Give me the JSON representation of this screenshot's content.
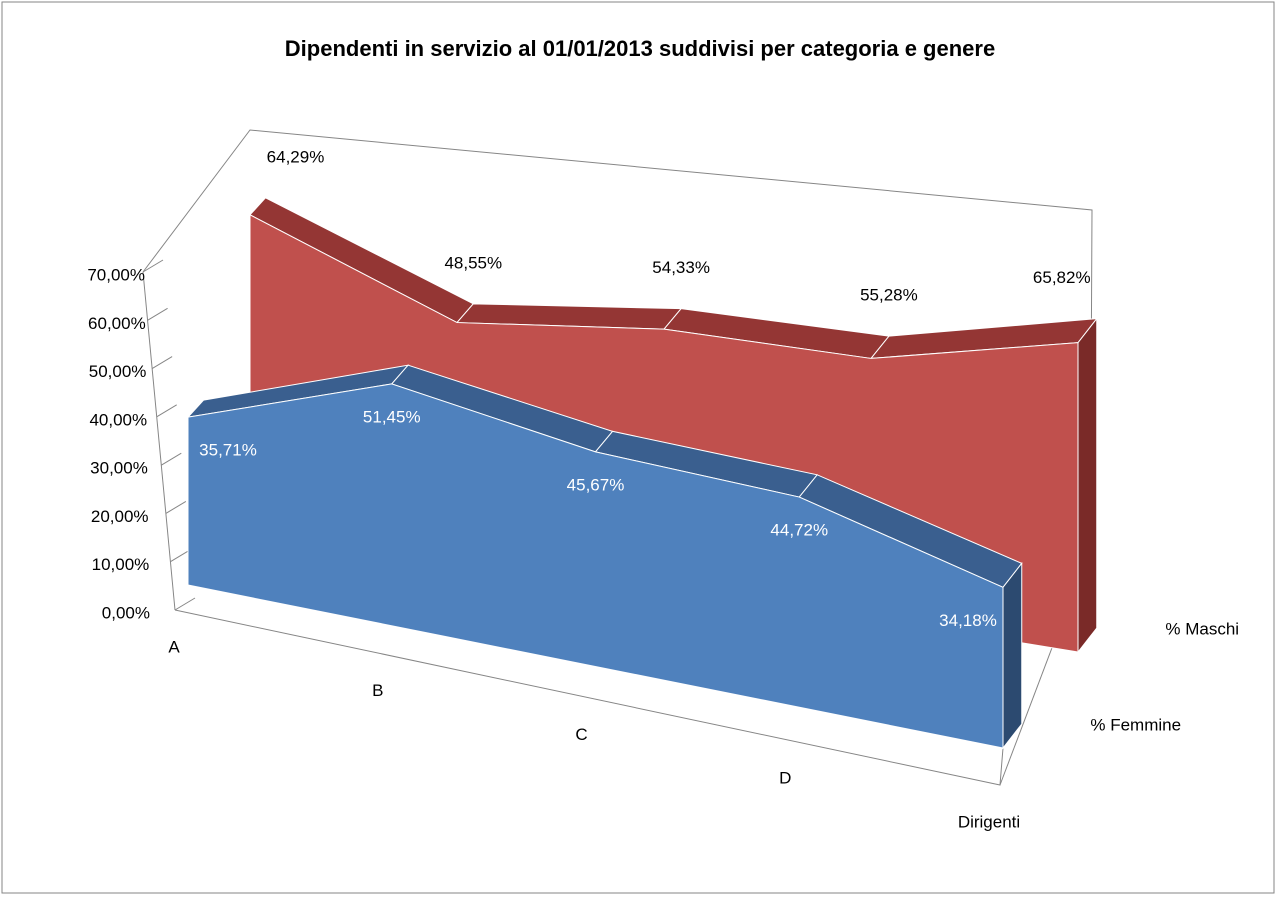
{
  "chart_data": {
    "type": "area3d",
    "title": "Dipendenti in servizio al 01/01/2013 suddivisi per categoria e genere",
    "categories": [
      "A",
      "B",
      "C",
      "D",
      "Dirigenti"
    ],
    "series": [
      {
        "name": "% Femmine",
        "color": "#4f81bd",
        "values": [
          35.71,
          51.45,
          45.67,
          44.72,
          34.18
        ],
        "value_labels": [
          "35,71%",
          "51,45%",
          "45,67%",
          "44,72%",
          "34,18%"
        ]
      },
      {
        "name": "% Maschi",
        "color": "#c0504d",
        "values": [
          64.29,
          48.55,
          54.33,
          55.28,
          65.82
        ],
        "value_labels": [
          "64,29%",
          "48,55%",
          "54,33%",
          "55,28%",
          "65,82%"
        ]
      }
    ],
    "ylim": [
      0,
      70
    ],
    "yticks": [
      {
        "value": 0,
        "label": "0,00%"
      },
      {
        "value": 10,
        "label": "10,00%"
      },
      {
        "value": 20,
        "label": "20,00%"
      },
      {
        "value": 30,
        "label": "30,00%"
      },
      {
        "value": 40,
        "label": "40,00%"
      },
      {
        "value": 50,
        "label": "50,00%"
      },
      {
        "value": 60,
        "label": "60,00%"
      },
      {
        "value": 70,
        "label": "70,00%"
      }
    ],
    "grid": true
  }
}
